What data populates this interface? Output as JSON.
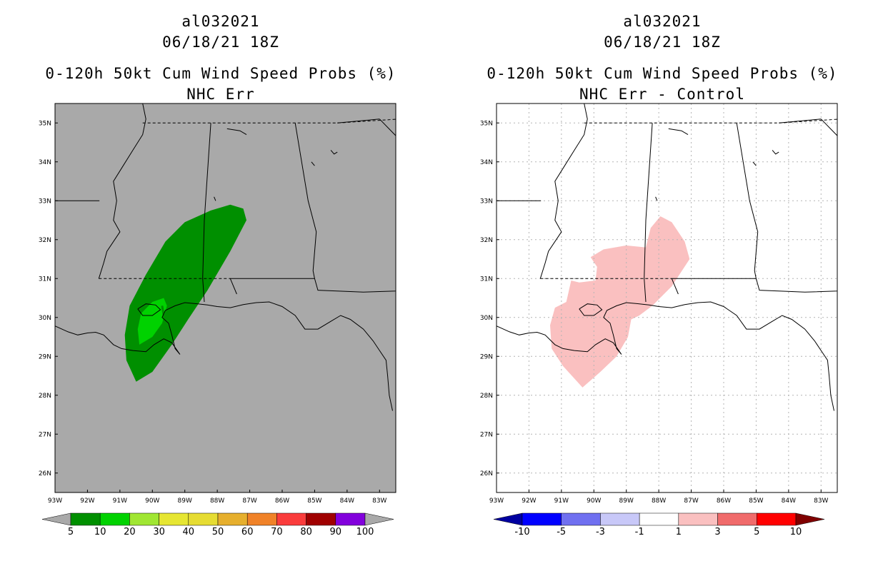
{
  "panels": [
    {
      "storm_id": "al032021",
      "datetime": "06/18/21 18Z",
      "title": "0-120h 50kt Cum Wind Speed Probs (%)",
      "subtitle": "NHC Err",
      "colorbar": {
        "colors": [
          "#008f00",
          "#00d200",
          "#a0e632",
          "#e6e632",
          "#e6dc32",
          "#e6af2d",
          "#f08228",
          "#fa3c3c",
          "#a00000",
          "#8200dc"
        ],
        "end_colors": [
          "#a9a9a9",
          "#a9a9a9"
        ],
        "labels": [
          "5",
          "10",
          "20",
          "30",
          "40",
          "50",
          "60",
          "70",
          "80",
          "90",
          "100"
        ]
      }
    },
    {
      "storm_id": "al032021",
      "datetime": "06/18/21 18Z",
      "title": "0-120h 50kt Cum Wind Speed Probs (%)",
      "subtitle": "NHC Err - Control",
      "colorbar": {
        "colors": [
          "#0000ff",
          "#7070f0",
          "#c8c8f8",
          "#ffffff",
          "#fac0c0",
          "#f06b6b",
          "#ff0000"
        ],
        "end_colors": [
          "#0000a0",
          "#800000"
        ],
        "labels": [
          "-10",
          "-5",
          "-3",
          "-1",
          "1",
          "3",
          "5",
          "10"
        ]
      }
    }
  ],
  "map": {
    "lon_labels": [
      "93W",
      "92W",
      "91W",
      "90W",
      "89W",
      "88W",
      "87W",
      "86W",
      "85W",
      "84W",
      "83W"
    ],
    "lat_labels": [
      "35N",
      "34N",
      "33N",
      "32N",
      "31N",
      "30N",
      "29N",
      "28N",
      "27N",
      "26N"
    ],
    "lon_range": [
      -93,
      -82.5
    ],
    "lat_range": [
      25.5,
      35.5
    ]
  },
  "colors": {
    "land_ocean_left": "#a9a9a9",
    "grid_right": "#b4b4b4"
  }
}
